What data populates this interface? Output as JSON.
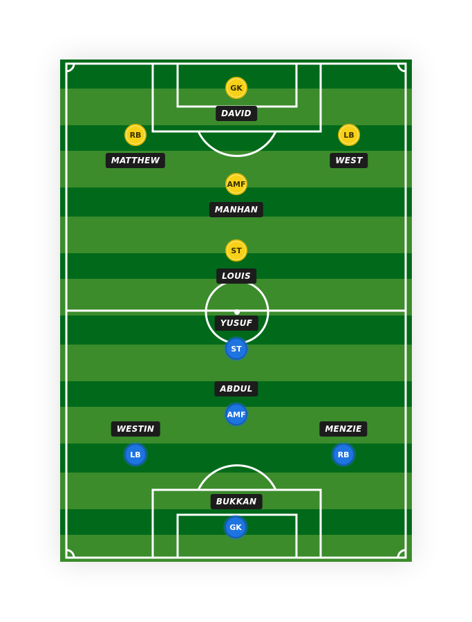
{
  "team_yellow": {
    "color": "#f7d117",
    "players": [
      {
        "id": "gk",
        "position": "GK",
        "name": "DAVID"
      },
      {
        "id": "rb",
        "position": "RB",
        "name": "MATTHEW"
      },
      {
        "id": "lb",
        "position": "LB",
        "name": "WEST"
      },
      {
        "id": "amf",
        "position": "AMF",
        "name": "MANHAN"
      },
      {
        "id": "st",
        "position": "ST",
        "name": "LOUIS"
      }
    ]
  },
  "team_blue": {
    "color": "#1e74e0",
    "players": [
      {
        "id": "st",
        "position": "ST",
        "name": "YUSUF"
      },
      {
        "id": "amf",
        "position": "AMF",
        "name": "ABDUL"
      },
      {
        "id": "lb",
        "position": "LB",
        "name": "WESTIN"
      },
      {
        "id": "rb",
        "position": "RB",
        "name": "MENZIE"
      },
      {
        "id": "gk",
        "position": "GK",
        "name": "BUKKAN"
      }
    ]
  },
  "pitch": {
    "grass_dark": "#006a1a",
    "grass_light": "#3c8c2c",
    "line_color": "#ffffff"
  }
}
